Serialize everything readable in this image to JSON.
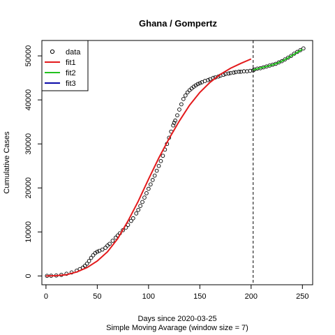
{
  "chart_data": {
    "type": "scatter",
    "title": "Ghana / Gompertz",
    "xlabel": "Days since 2020-03-25",
    "subtitle": "Simple Moving Avarage (window size = 7)",
    "ylabel": "Cumulative Cases",
    "xlim": [
      -4,
      260
    ],
    "ylim": [
      -2000,
      53500
    ],
    "x_ticks": [
      0,
      50,
      100,
      150,
      200,
      250
    ],
    "y_ticks": [
      0,
      10000,
      20000,
      30000,
      40000,
      50000
    ],
    "x_tick_labels": [
      "0",
      "50",
      "100",
      "150",
      "200",
      "250"
    ],
    "y_tick_labels": [
      "0",
      "10000",
      "20000",
      "30000",
      "40000",
      "50000"
    ],
    "vline_x": 202,
    "legend": {
      "position": "top-left",
      "entries": [
        {
          "label": "data",
          "symbol": "circle",
          "color": "#000000"
        },
        {
          "label": "fit1",
          "symbol": "line",
          "color": "#e31a1c"
        },
        {
          "label": "fit2",
          "symbol": "line",
          "color": "#22c11e"
        },
        {
          "label": "fit3",
          "symbol": "line",
          "color": "#0a0aa8"
        }
      ]
    },
    "data_points": {
      "x": [
        1,
        5,
        10,
        15,
        20,
        25,
        30,
        33,
        36,
        38,
        40,
        42,
        44,
        46,
        48,
        50,
        52,
        55,
        58,
        60,
        62,
        65,
        68,
        70,
        72,
        75,
        78,
        80,
        83,
        85,
        88,
        90,
        92,
        94,
        96,
        98,
        100,
        102,
        104,
        106,
        108,
        110,
        112,
        114,
        116,
        118,
        120,
        122,
        124,
        125,
        126,
        128,
        130,
        132,
        134,
        136,
        138,
        140,
        142,
        144,
        146,
        148,
        150,
        152,
        155,
        158,
        160,
        163,
        165,
        168,
        170,
        173,
        175,
        178,
        180,
        183,
        185,
        188,
        190,
        193,
        196,
        199,
        202
      ],
      "y": [
        20,
        50,
        100,
        250,
        500,
        800,
        1200,
        1550,
        1900,
        2300,
        2800,
        3400,
        4100,
        4700,
        5200,
        5500,
        5700,
        6000,
        6400,
        6900,
        7300,
        8000,
        8700,
        9200,
        9700,
        10400,
        11000,
        11600,
        12500,
        13100,
        14200,
        15000,
        15900,
        16800,
        17800,
        18800,
        19800,
        20800,
        21800,
        22800,
        23900,
        25000,
        26100,
        27300,
        28700,
        30000,
        31400,
        32800,
        34200,
        34800,
        35300,
        36500,
        37800,
        39000,
        40200,
        41000,
        41700,
        42200,
        42600,
        43000,
        43300,
        43600,
        43800,
        44000,
        44300,
        44500,
        44700,
        45000,
        45100,
        45300,
        45500,
        45700,
        45900,
        46000,
        46100,
        46200,
        46300,
        46400,
        46400,
        46500,
        46500,
        46600,
        46700
      ]
    },
    "fit1": {
      "color": "#e31a1c",
      "x": [
        0,
        10,
        20,
        30,
        40,
        50,
        60,
        70,
        80,
        90,
        100,
        110,
        120,
        130,
        140,
        150,
        160,
        170,
        180,
        190,
        200
      ],
      "y": [
        0,
        60,
        280,
        900,
        1900,
        3400,
        5500,
        8500,
        12500,
        17000,
        22000,
        26800,
        31200,
        35200,
        38800,
        41700,
        44000,
        45800,
        47200,
        48300,
        49300
      ]
    },
    "fit2": {
      "color": "#22c11e",
      "x": [
        202,
        205,
        210,
        215,
        220,
        225,
        230,
        235,
        240,
        245,
        250
      ],
      "y": [
        46800,
        47000,
        47300,
        47600,
        47900,
        48300,
        48800,
        49400,
        50100,
        50800,
        51500
      ]
    },
    "fit2_points": {
      "x": [
        203,
        206,
        209,
        212,
        215,
        218,
        221,
        224,
        227,
        230,
        233,
        236,
        239,
        242,
        245,
        248,
        251
      ],
      "y": [
        46900,
        47100,
        47200,
        47400,
        47600,
        47800,
        48000,
        48200,
        48500,
        48800,
        49200,
        49600,
        50000,
        50500,
        50900,
        51300,
        51700
      ]
    }
  }
}
